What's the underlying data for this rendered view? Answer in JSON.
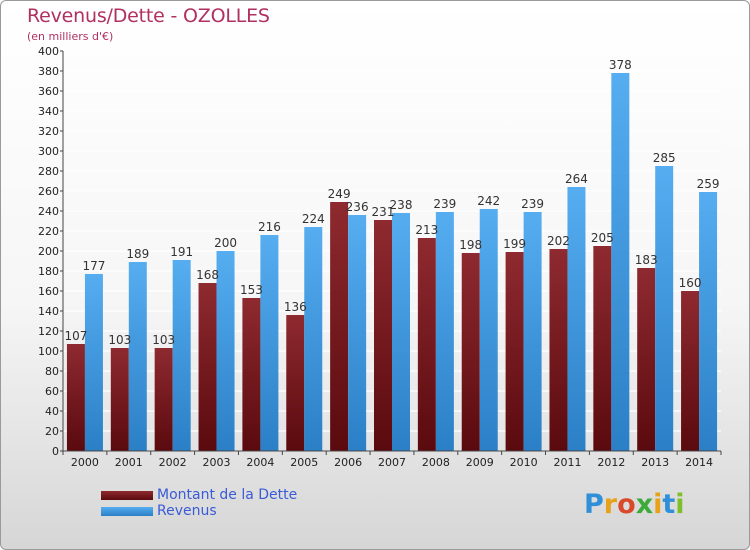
{
  "title": "Revenus/Dette - OZOLLES",
  "subtitle": "(en milliers d'€)",
  "colors": {
    "dette": "#7a1a1f",
    "revenus": "#3d9be0",
    "title": "#b03060"
  },
  "legend": {
    "dette_label": "Montant de la Dette",
    "revenus_label": "Revenus"
  },
  "logo_text": "Proxiti",
  "chart_data": {
    "type": "bar",
    "categories": [
      "2000",
      "2001",
      "2002",
      "2003",
      "2004",
      "2005",
      "2006",
      "2007",
      "2008",
      "2009",
      "2010",
      "2011",
      "2012",
      "2013",
      "2014"
    ],
    "series": [
      {
        "name": "Montant de la Dette",
        "values": [
          107,
          103,
          103,
          168,
          153,
          136,
          249,
          231,
          213,
          198,
          199,
          202,
          205,
          183,
          160
        ]
      },
      {
        "name": "Revenus",
        "values": [
          177,
          189,
          191,
          200,
          216,
          224,
          236,
          238,
          239,
          242,
          239,
          264,
          378,
          285,
          259
        ]
      }
    ],
    "ylim": [
      0,
      400
    ],
    "ytick_step": 20,
    "grid": true
  }
}
